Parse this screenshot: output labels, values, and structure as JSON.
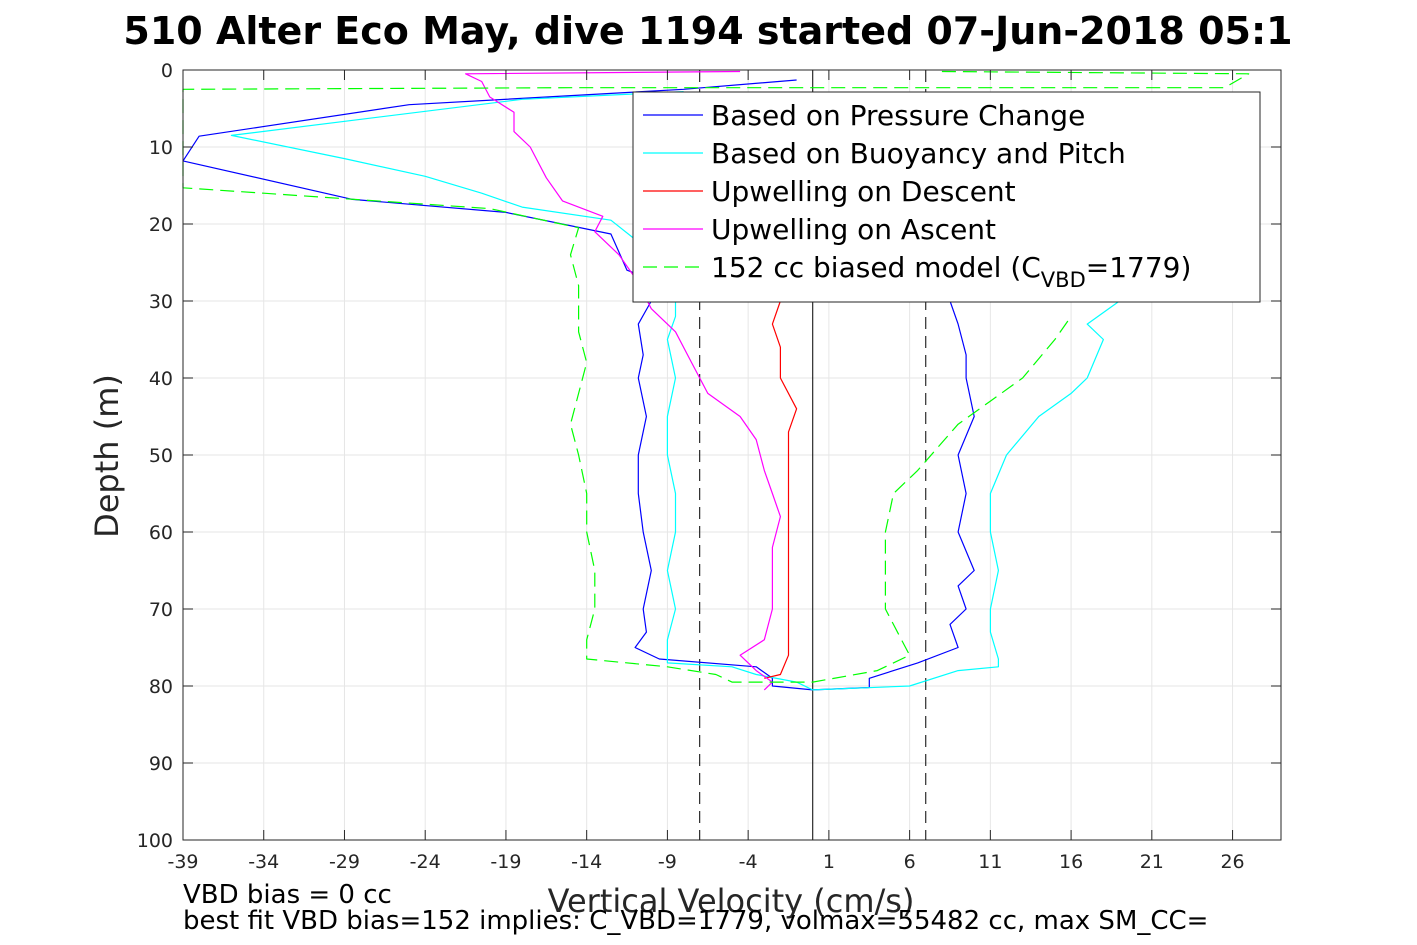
{
  "chart_data": {
    "type": "line",
    "title": "510 Alter Eco May, dive 1194 started 07-Jun-2018 05:1",
    "xlabel": "Vertical Velocity (cm/s)",
    "ylabel": "Depth (m)",
    "xlim": [
      -39,
      29
    ],
    "ylim": [
      100,
      0
    ],
    "y_reversed": true,
    "grid": true,
    "legend_position": "top-right",
    "xticks": [
      -39,
      -34,
      -29,
      -24,
      -19,
      -14,
      -9,
      -4,
      1,
      6,
      11,
      16,
      21,
      26
    ],
    "yticks": [
      0,
      10,
      20,
      30,
      40,
      50,
      60,
      70,
      80,
      90,
      100
    ],
    "footnotes": [
      "VBD bias = 0 cc",
      "best fit VBD bias=152 implies: C_VBD=1779, volmax=55482 cc, max SM_CC="
    ],
    "legend": [
      {
        "label": "Based on Pressure Change",
        "color": "#0000ff",
        "dash": "solid"
      },
      {
        "label": "Based on Buoyancy and Pitch",
        "color": "#00ffff",
        "dash": "solid"
      },
      {
        "label": "Upwelling on Descent",
        "color": "#ff0000",
        "dash": "solid"
      },
      {
        "label": "Upwelling on Ascent",
        "color": "#ff00ff",
        "dash": "solid"
      },
      {
        "label_prefix": "152 cc biased model (C",
        "label_sub": "VBD",
        "label_suffix": "=1779)",
        "color": "#00ff00",
        "dash": "dashed"
      }
    ],
    "reference_lines": [
      {
        "x": 0,
        "style": "solid",
        "color": "#000000"
      },
      {
        "x": -7,
        "style": "dashed",
        "color": "#000000"
      },
      {
        "x": 7,
        "style": "dashed",
        "color": "#000000"
      }
    ],
    "series": [
      {
        "name": "Based on Pressure Change",
        "color": "#0000ff",
        "dash": "solid",
        "points": [
          [
            -1,
            1.3
          ],
          [
            -8,
            2.5
          ],
          [
            -25,
            4.5
          ],
          [
            -38,
            8.6
          ],
          [
            -39,
            11.8
          ],
          [
            -28.5,
            16.8
          ],
          [
            -19,
            18.5
          ],
          [
            -12.5,
            21.3
          ],
          [
            -11.5,
            26
          ],
          [
            -9,
            28
          ],
          [
            -10,
            30
          ],
          [
            -10.8,
            33
          ],
          [
            -10.5,
            37
          ],
          [
            -10.8,
            40
          ],
          [
            -10.3,
            45
          ],
          [
            -10.8,
            50
          ],
          [
            -10.8,
            55
          ],
          [
            -10.5,
            60
          ],
          [
            -10,
            65
          ],
          [
            -10.5,
            70
          ],
          [
            -10.3,
            73
          ],
          [
            -11,
            75
          ],
          [
            -9.5,
            76.5
          ],
          [
            -3.5,
            77.5
          ],
          [
            -2.5,
            79
          ],
          [
            -2.5,
            80
          ],
          [
            0,
            80.5
          ],
          [
            3.5,
            80.2
          ],
          [
            3.5,
            79
          ],
          [
            6.5,
            77
          ],
          [
            9,
            75
          ],
          [
            8.5,
            72
          ],
          [
            9.5,
            70
          ],
          [
            9,
            67
          ],
          [
            10,
            65
          ],
          [
            9,
            60
          ],
          [
            9.5,
            55
          ],
          [
            9,
            50
          ],
          [
            10,
            45
          ],
          [
            9.5,
            40
          ],
          [
            9.5,
            37
          ],
          [
            9,
            33
          ],
          [
            8.5,
            30
          ]
        ]
      },
      {
        "name": "Based on Buoyancy and Pitch",
        "color": "#00ffff",
        "dash": "solid",
        "points": [
          [
            -8,
            2.8
          ],
          [
            -18,
            3.8
          ],
          [
            -36,
            8.5
          ],
          [
            -29,
            11.5
          ],
          [
            -24,
            13.8
          ],
          [
            -20.5,
            16
          ],
          [
            -18,
            17.8
          ],
          [
            -12.5,
            19.5
          ],
          [
            -11,
            22
          ],
          [
            -10,
            26
          ],
          [
            -8.5,
            28
          ],
          [
            -8.5,
            32
          ],
          [
            -9,
            35
          ],
          [
            -8.5,
            40
          ],
          [
            -9,
            45
          ],
          [
            -9,
            50
          ],
          [
            -8.5,
            55
          ],
          [
            -8.5,
            60
          ],
          [
            -9,
            65
          ],
          [
            -8.5,
            70
          ],
          [
            -9,
            74
          ],
          [
            -9,
            77
          ],
          [
            -5,
            77.5
          ],
          [
            -3.5,
            78.5
          ],
          [
            -1,
            79.5
          ],
          [
            0,
            80.5
          ],
          [
            6,
            80
          ],
          [
            9,
            78
          ],
          [
            11.5,
            77.5
          ],
          [
            11.5,
            76.5
          ],
          [
            11,
            73
          ],
          [
            11,
            70
          ],
          [
            11.5,
            65
          ],
          [
            11,
            60
          ],
          [
            11,
            55
          ],
          [
            12,
            50
          ],
          [
            14,
            45
          ],
          [
            16,
            42
          ],
          [
            17,
            40
          ],
          [
            18,
            35
          ],
          [
            17,
            33
          ],
          [
            19,
            30
          ]
        ]
      },
      {
        "name": "Upwelling on Descent",
        "color": "#ff0000",
        "dash": "solid",
        "points": [
          [
            -2,
            30
          ],
          [
            -2.5,
            33
          ],
          [
            -2,
            36
          ],
          [
            -2,
            40
          ],
          [
            -1,
            44
          ],
          [
            -1.5,
            47
          ],
          [
            -1.5,
            50
          ],
          [
            -1.5,
            55
          ],
          [
            -1.5,
            60
          ],
          [
            -1.5,
            66
          ],
          [
            -1.5,
            70
          ],
          [
            -1.5,
            74
          ],
          [
            -1.5,
            76
          ],
          [
            -2,
            78.5
          ],
          [
            -3,
            79
          ]
        ]
      },
      {
        "name": "Upwelling on Ascent",
        "color": "#ff00ff",
        "dash": "solid",
        "points": [
          [
            -4.5,
            0.2
          ],
          [
            -21.5,
            0.5
          ],
          [
            -20.5,
            1.5
          ],
          [
            -20,
            3.5
          ],
          [
            -18.5,
            5.5
          ],
          [
            -18.5,
            8
          ],
          [
            -17.5,
            10
          ],
          [
            -16.5,
            14
          ],
          [
            -15.5,
            17
          ],
          [
            -13,
            19
          ],
          [
            -13.5,
            21
          ],
          [
            -12,
            24
          ],
          [
            -11,
            27
          ],
          [
            -10,
            31
          ],
          [
            -8.5,
            34
          ],
          [
            -7.5,
            38
          ],
          [
            -6.5,
            42
          ],
          [
            -4.5,
            45
          ],
          [
            -3.5,
            48
          ],
          [
            -3,
            52
          ],
          [
            -2.5,
            55
          ],
          [
            -2,
            58
          ],
          [
            -2.5,
            62
          ],
          [
            -2.5,
            66
          ],
          [
            -2.5,
            70
          ],
          [
            -3,
            74
          ],
          [
            -4.5,
            76
          ],
          [
            -3.5,
            78
          ],
          [
            -2.5,
            79.5
          ],
          [
            -3,
            80.5
          ]
        ]
      },
      {
        "name": "152 cc biased model",
        "color": "#00ff00",
        "dash": "dashed",
        "points": [
          [
            8,
            0.2
          ],
          [
            27,
            0.5
          ],
          [
            25.5,
            2.3
          ],
          [
            -15,
            2.3
          ],
          [
            -39,
            2.5
          ],
          [
            -39,
            15.3
          ],
          [
            -34,
            16
          ],
          [
            -20,
            18
          ],
          [
            -14.5,
            20.5
          ],
          [
            -15,
            24
          ],
          [
            -14.5,
            28
          ],
          [
            -14.5,
            34
          ],
          [
            -14,
            38
          ],
          [
            -14.5,
            42
          ],
          [
            -15,
            46
          ],
          [
            -14.5,
            50
          ],
          [
            -14,
            55
          ],
          [
            -14,
            60
          ],
          [
            -13.5,
            65
          ],
          [
            -13.5,
            70
          ],
          [
            -14,
            74
          ],
          [
            -14,
            76.5
          ],
          [
            -9,
            77.5
          ],
          [
            -6,
            78.5
          ],
          [
            -5,
            79.5
          ],
          [
            0,
            79.5
          ],
          [
            4,
            78
          ],
          [
            6,
            76
          ],
          [
            5.5,
            74
          ],
          [
            4.5,
            70
          ],
          [
            4.5,
            60
          ],
          [
            5,
            55
          ],
          [
            6.5,
            52
          ],
          [
            9,
            46
          ],
          [
            11,
            43
          ],
          [
            13,
            40
          ],
          [
            15,
            35
          ],
          [
            16,
            32
          ]
        ]
      }
    ]
  }
}
